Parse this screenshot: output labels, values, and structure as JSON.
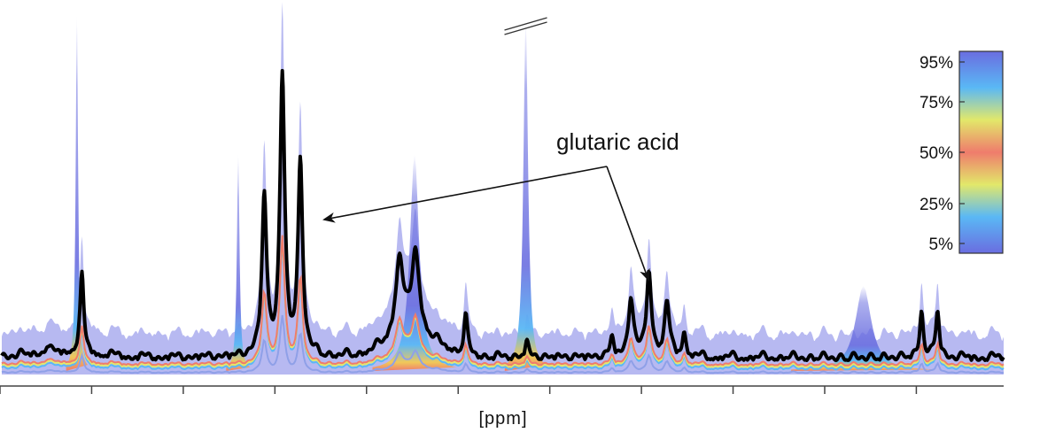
{
  "chart_data": {
    "type": "line",
    "xlabel": "[ppm]",
    "ylabel": "",
    "grid": false,
    "annotation": {
      "text": "glutaric acid"
    },
    "colorbar": {
      "ticks": [
        "95%",
        "75%",
        "50%",
        "25%",
        "5%"
      ],
      "colors": [
        "#6a6de0",
        "#5ab8f5",
        "#e2e86a",
        "#ef7c6c",
        "#e2e86a",
        "#5ab8f5",
        "#6a6de0"
      ]
    },
    "peaks": [
      {
        "x": 0.08,
        "h": 0.22,
        "w": 0.0022
      },
      {
        "x": 0.045,
        "h": 0.02,
        "w": 0.002
      },
      {
        "x": 0.262,
        "h": 0.46,
        "w": 0.0028
      },
      {
        "x": 0.28,
        "h": 0.8,
        "w": 0.0028
      },
      {
        "x": 0.298,
        "h": 0.55,
        "w": 0.0028
      },
      {
        "x": 0.397,
        "h": 0.23,
        "w": 0.0045
      },
      {
        "x": 0.413,
        "h": 0.24,
        "w": 0.0045
      },
      {
        "x": 0.463,
        "h": 0.11,
        "w": 0.0022
      },
      {
        "x": 0.524,
        "h": 0.04,
        "w": 0.0022
      },
      {
        "x": 0.609,
        "h": 0.05,
        "w": 0.0022
      },
      {
        "x": 0.628,
        "h": 0.17,
        "w": 0.003
      },
      {
        "x": 0.646,
        "h": 0.24,
        "w": 0.003
      },
      {
        "x": 0.664,
        "h": 0.15,
        "w": 0.003
      },
      {
        "x": 0.681,
        "h": 0.07,
        "w": 0.0022
      },
      {
        "x": 0.918,
        "h": 0.13,
        "w": 0.0022
      },
      {
        "x": 0.934,
        "h": 0.13,
        "w": 0.0022
      }
    ],
    "bands": [
      {
        "x": 0.523,
        "h": 1.0,
        "w": 0.0035,
        "broken": true
      },
      {
        "x": 0.075,
        "h": 1.0,
        "w": 0.0018
      },
      {
        "x": 0.236,
        "h": 0.6,
        "w": 0.002
      },
      {
        "x": 0.412,
        "h": 0.6,
        "w": 0.007
      },
      {
        "x": 0.86,
        "h": 0.22,
        "w": 0.012
      }
    ],
    "xticks": [
      0.0,
      0.0913,
      0.1826,
      0.2739,
      0.3652,
      0.4565,
      0.5478,
      0.6391,
      0.7304,
      0.8217,
      0.913
    ]
  }
}
